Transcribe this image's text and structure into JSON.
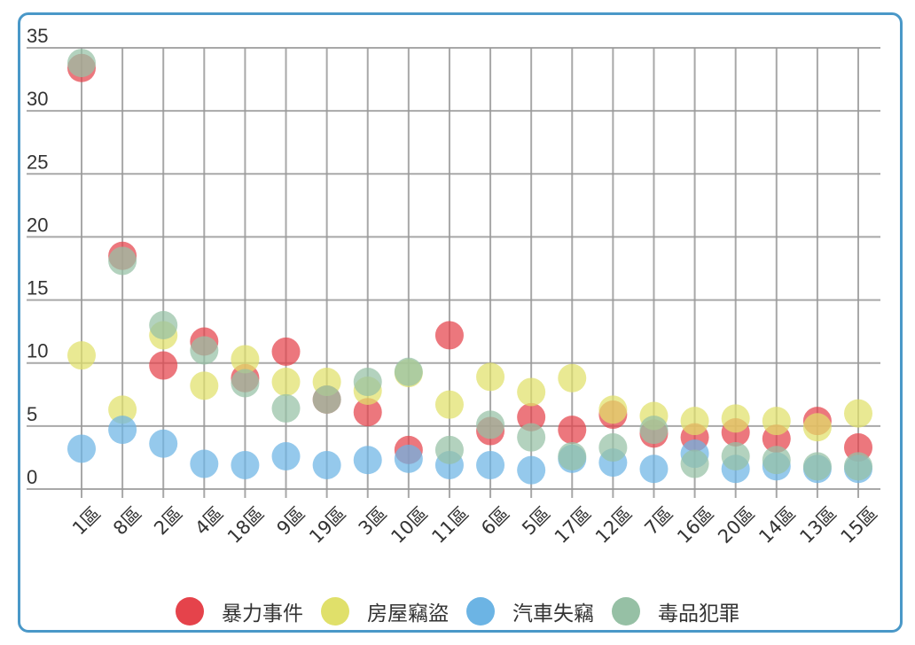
{
  "chart_data": {
    "type": "scatter",
    "title": "",
    "xlabel": "",
    "ylabel": "",
    "ylim": [
      0,
      35
    ],
    "yticks": [
      0,
      5,
      10,
      15,
      20,
      25,
      30,
      35
    ],
    "grid": true,
    "legend_position": "bottom",
    "categories": [
      "1區",
      "8區",
      "2區",
      "4區",
      "18區",
      "9區",
      "19區",
      "3區",
      "10區",
      "11區",
      "6區",
      "5區",
      "17區",
      "12區",
      "7區",
      "16區",
      "20區",
      "14區",
      "13區",
      "15區"
    ],
    "series": [
      {
        "name": "暴力事件",
        "color": "#e5434b",
        "values": [
          33.4,
          18.5,
          9.8,
          11.7,
          8.8,
          10.9,
          7.1,
          6.1,
          3.1,
          12.2,
          4.6,
          5.7,
          4.7,
          5.9,
          4.4,
          4.1,
          4.5,
          4.0,
          5.4,
          3.3
        ]
      },
      {
        "name": "房屋竊盜",
        "color": "#e0e06a",
        "values": [
          10.6,
          6.3,
          12.2,
          8.2,
          10.3,
          8.5,
          8.5,
          7.8,
          9.2,
          6.7,
          8.9,
          7.7,
          8.8,
          6.3,
          5.8,
          5.4,
          5.6,
          5.4,
          4.9,
          6.0
        ]
      },
      {
        "name": "汽車失竊",
        "color": "#6cb4e4",
        "values": [
          3.2,
          4.7,
          3.6,
          2.0,
          1.9,
          2.6,
          1.9,
          2.3,
          2.4,
          1.9,
          1.9,
          1.5,
          2.4,
          2.1,
          1.6,
          2.8,
          1.6,
          1.8,
          1.6,
          1.6
        ]
      },
      {
        "name": "毒品犯罪",
        "color": "#96c0a5",
        "values": [
          33.8,
          18.1,
          13.0,
          11.0,
          8.4,
          6.4,
          7.1,
          8.5,
          9.3,
          3.1,
          5.1,
          4.1,
          2.6,
          3.3,
          4.7,
          2.0,
          2.6,
          2.3,
          1.8,
          1.8
        ]
      }
    ]
  },
  "legend": {
    "items": [
      {
        "label": "暴力事件",
        "color": "#e5434b"
      },
      {
        "label": "房屋竊盜",
        "color": "#e0e06a"
      },
      {
        "label": "汽車失竊",
        "color": "#6cb4e4"
      },
      {
        "label": "毒品犯罪",
        "color": "#96c0a5"
      }
    ]
  },
  "style": {
    "frame_border_color": "#4a98c8",
    "grid_color": "#999999",
    "text_color": "#333333"
  }
}
